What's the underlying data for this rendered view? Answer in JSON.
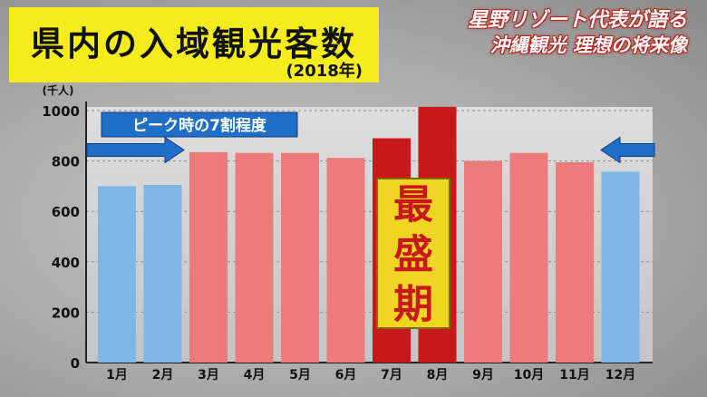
{
  "title": {
    "main": "県内の入域観光客数",
    "year": "(2018年)"
  },
  "caption": {
    "line1": "星野リゾート代表が語る",
    "line2": "沖縄観光  理想の将来像"
  },
  "colors": {
    "title_bg": "#f4ec1c",
    "bar_blue": "#7eb6e6",
    "bar_pink": "#ee7b7b",
    "bar_red": "#c8181a",
    "label_box": "#f0d620",
    "callout_blue": "#1f6ec8"
  },
  "chart_data": {
    "type": "bar",
    "unit_label": "(千人)",
    "categories": [
      "1月",
      "2月",
      "3月",
      "4月",
      "5月",
      "6月",
      "7月",
      "8月",
      "9月",
      "10月",
      "11月",
      "12月"
    ],
    "values": [
      700,
      705,
      835,
      832,
      832,
      812,
      890,
      1015,
      800,
      832,
      795,
      758
    ],
    "bar_colors": [
      "blue",
      "blue",
      "pink",
      "pink",
      "pink",
      "pink",
      "red",
      "red",
      "pink",
      "pink",
      "pink",
      "blue"
    ],
    "ylim": [
      0,
      1000
    ],
    "yticks": [
      0,
      200,
      400,
      600,
      800,
      1000
    ],
    "grid": true,
    "reference_line_value": 840,
    "annotations": {
      "callout": "ピーク時の7割程度",
      "peak_label": "最盛期"
    }
  }
}
